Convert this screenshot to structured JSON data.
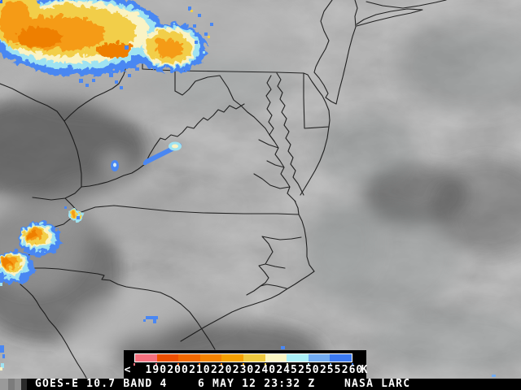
{
  "status_bar": {
    "satellite": "GOES-E 10.7 BAND 4",
    "datetime": "6 MAY 12 23:32 Z",
    "credit": "NASA LARC"
  },
  "colorbar": {
    "prefix_label": "<",
    "unit_label": "K",
    "boundary_labels": [
      "190",
      "200",
      "210",
      "220",
      "230",
      "240",
      "245",
      "250",
      "255",
      "260"
    ],
    "segment_colors": [
      "#F5707E",
      "#ED4F00",
      "#F16800",
      "#F48300",
      "#F5A000",
      "#EFC93F",
      "#FAF5C3",
      "#ABEFF7",
      "#72ACF2",
      "#3B79F0"
    ],
    "label_color": "#FFFFFF",
    "panel_color": "#000000"
  },
  "map_palette": {
    "cloud_core_orange": "#EE7F00",
    "cloud_orange": "#F59B18",
    "cloud_yellow": "#F2CE49",
    "cloud_cream": "#FAF3C4",
    "cloud_cyan": "#9FE3F2",
    "cloud_blue": "#4A87F2",
    "cloud_deep_blue": "#2F6BE8",
    "boundary_line": "#161616"
  }
}
